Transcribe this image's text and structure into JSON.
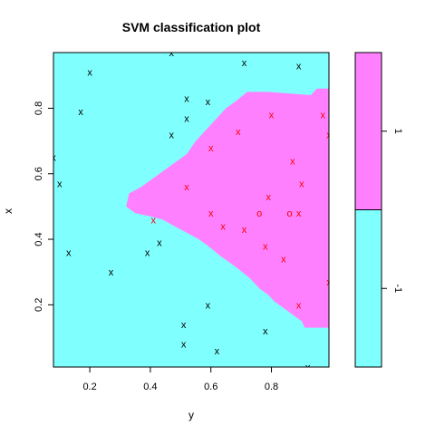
{
  "chart_data": {
    "type": "scatter",
    "title": "SVM classification plot",
    "xlabel": "y",
    "ylabel": "x",
    "xlim": [
      0.08,
      0.99
    ],
    "ylim": [
      0.01,
      0.97
    ],
    "xticks": [
      "0.2",
      "0.4",
      "0.6",
      "0.8"
    ],
    "yticks": [
      "0.2",
      "0.4",
      "0.6",
      "0.8"
    ],
    "xtick_values": [
      0.2,
      0.4,
      0.6,
      0.8
    ],
    "ytick_values": [
      0.2,
      0.4,
      0.6,
      0.8
    ],
    "region_colors": {
      "class_1": "#ff80ff",
      "class_neg1": "#80ffff"
    },
    "class_1_region": [
      [
        0.32,
        0.5
      ],
      [
        0.33,
        0.54
      ],
      [
        0.37,
        0.56
      ],
      [
        0.4,
        0.58
      ],
      [
        0.43,
        0.6
      ],
      [
        0.46,
        0.62
      ],
      [
        0.49,
        0.64
      ],
      [
        0.52,
        0.66
      ],
      [
        0.55,
        0.7
      ],
      [
        0.58,
        0.73
      ],
      [
        0.6,
        0.75
      ],
      [
        0.62,
        0.77
      ],
      [
        0.65,
        0.8
      ],
      [
        0.68,
        0.82
      ],
      [
        0.72,
        0.85
      ],
      [
        0.79,
        0.85
      ],
      [
        0.93,
        0.84
      ],
      [
        0.95,
        0.86
      ],
      [
        0.99,
        0.86
      ],
      [
        0.99,
        0.13
      ],
      [
        0.91,
        0.13
      ],
      [
        0.9,
        0.15
      ],
      [
        0.87,
        0.17
      ],
      [
        0.84,
        0.19
      ],
      [
        0.81,
        0.21
      ],
      [
        0.79,
        0.23
      ],
      [
        0.76,
        0.25
      ],
      [
        0.73,
        0.28
      ],
      [
        0.69,
        0.31
      ],
      [
        0.66,
        0.33
      ],
      [
        0.63,
        0.35
      ],
      [
        0.59,
        0.38
      ],
      [
        0.56,
        0.4
      ],
      [
        0.52,
        0.42
      ],
      [
        0.48,
        0.44
      ],
      [
        0.44,
        0.46
      ],
      [
        0.4,
        0.47
      ],
      [
        0.35,
        0.48
      ]
    ],
    "series": [
      {
        "marker": "x",
        "color": "#000000",
        "points": [
          [
            0.47,
            0.97
          ],
          [
            0.2,
            0.91
          ],
          [
            0.71,
            0.94
          ],
          [
            0.89,
            0.93
          ],
          [
            0.52,
            0.83
          ],
          [
            0.59,
            0.82
          ],
          [
            0.17,
            0.79
          ],
          [
            0.52,
            0.77
          ],
          [
            0.47,
            0.72
          ],
          [
            0.08,
            0.65
          ],
          [
            0.1,
            0.57
          ],
          [
            0.43,
            0.39
          ],
          [
            0.13,
            0.36
          ],
          [
            0.39,
            0.36
          ],
          [
            0.27,
            0.3
          ],
          [
            0.59,
            0.2
          ],
          [
            0.51,
            0.14
          ],
          [
            0.78,
            0.12
          ],
          [
            0.51,
            0.08
          ],
          [
            0.62,
            0.06
          ],
          [
            0.92,
            0.01
          ]
        ]
      },
      {
        "marker": "x",
        "color": "#ff0000",
        "points": [
          [
            0.8,
            0.78
          ],
          [
            0.97,
            0.78
          ],
          [
            0.69,
            0.73
          ],
          [
            0.99,
            0.72
          ],
          [
            0.6,
            0.68
          ],
          [
            0.87,
            0.64
          ],
          [
            0.9,
            0.57
          ],
          [
            0.52,
            0.56
          ],
          [
            0.79,
            0.53
          ],
          [
            0.41,
            0.46
          ],
          [
            0.6,
            0.48
          ],
          [
            0.89,
            0.48
          ],
          [
            0.64,
            0.44
          ],
          [
            0.71,
            0.43
          ],
          [
            0.78,
            0.38
          ],
          [
            0.84,
            0.34
          ],
          [
            0.99,
            0.27
          ],
          [
            0.89,
            0.2
          ]
        ]
      },
      {
        "marker": "o",
        "color": "#ff0000",
        "points": [
          [
            0.76,
            0.48
          ],
          [
            0.86,
            0.48
          ]
        ]
      }
    ],
    "legend": {
      "levels": [
        "1",
        "-1"
      ],
      "colors": [
        "#ff80ff",
        "#80ffff"
      ],
      "boundary": 0.5
    }
  }
}
